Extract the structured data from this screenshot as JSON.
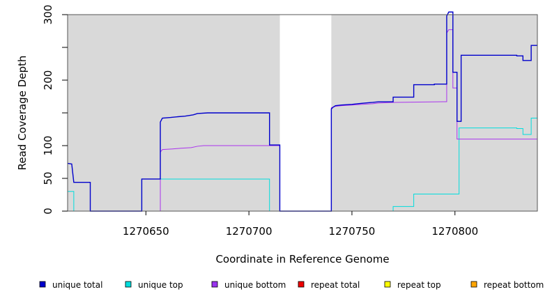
{
  "chart_data": {
    "type": "line",
    "title": "",
    "xlabel": "Coordinate in Reference Genome",
    "ylabel": "Read Coverage Depth",
    "xlim": [
      1270612,
      1270840
    ],
    "ylim": [
      0,
      300
    ],
    "x_ticks": [
      1270650,
      1270700,
      1270750,
      1270800
    ],
    "x_tick_labels": [
      "1270650",
      "1270700",
      "1270750",
      "1270800"
    ],
    "y_ticks": [
      0,
      50,
      100,
      150,
      200,
      250,
      300
    ],
    "y_tick_labels": [
      "0",
      "50",
      "100",
      "",
      "200",
      "",
      "300"
    ],
    "background_color": "#d9d9d9",
    "grid": false,
    "regions": [
      {
        "kind": "shaded",
        "x": [
          1270612,
          1270715
        ]
      },
      {
        "kind": "gap",
        "x": [
          1270715,
          1270740
        ]
      },
      {
        "kind": "shaded",
        "x": [
          1270740,
          1270840
        ]
      }
    ],
    "series": [
      {
        "name": "unique total",
        "color": "#0000cc",
        "points": [
          [
            1270612,
            73
          ],
          [
            1270614,
            72
          ],
          [
            1270615,
            44
          ],
          [
            1270623,
            44
          ],
          [
            1270623,
            0
          ],
          [
            1270648,
            0
          ],
          [
            1270648,
            49
          ],
          [
            1270657,
            49
          ],
          [
            1270657,
            136
          ],
          [
            1270658,
            142
          ],
          [
            1270662,
            143
          ],
          [
            1270665,
            144
          ],
          [
            1270669,
            145
          ],
          [
            1270673,
            147
          ],
          [
            1270675,
            149
          ],
          [
            1270680,
            150
          ],
          [
            1270710,
            150
          ],
          [
            1270710,
            101
          ],
          [
            1270715,
            101
          ],
          [
            1270715,
            0
          ],
          [
            1270740,
            0
          ],
          [
            1270740,
            156
          ],
          [
            1270741,
            159
          ],
          [
            1270742,
            161
          ],
          [
            1270745,
            162
          ],
          [
            1270750,
            163
          ],
          [
            1270753,
            164
          ],
          [
            1270756,
            165
          ],
          [
            1270760,
            166
          ],
          [
            1270763,
            167
          ],
          [
            1270770,
            167
          ],
          [
            1270770,
            174
          ],
          [
            1270780,
            174
          ],
          [
            1270780,
            193
          ],
          [
            1270790,
            193
          ],
          [
            1270790,
            194
          ],
          [
            1270796,
            194
          ],
          [
            1270796,
            298
          ],
          [
            1270797,
            304
          ],
          [
            1270799,
            304
          ],
          [
            1270799,
            212
          ],
          [
            1270801,
            212
          ],
          [
            1270801,
            137
          ],
          [
            1270803,
            137
          ],
          [
            1270803,
            238
          ],
          [
            1270830,
            238
          ],
          [
            1270830,
            237
          ],
          [
            1270833,
            237
          ],
          [
            1270833,
            230
          ],
          [
            1270837,
            230
          ],
          [
            1270837,
            253
          ],
          [
            1270840,
            253
          ]
        ]
      },
      {
        "name": "unique top",
        "color": "#00dddd",
        "points": [
          [
            1270612,
            30
          ],
          [
            1270615,
            30
          ],
          [
            1270615,
            0
          ],
          [
            1270648,
            0
          ],
          [
            1270648,
            49
          ],
          [
            1270710,
            49
          ],
          [
            1270710,
            0
          ],
          [
            1270770,
            0
          ],
          [
            1270770,
            7
          ],
          [
            1270780,
            7
          ],
          [
            1270780,
            26
          ],
          [
            1270802,
            26
          ],
          [
            1270802,
            127
          ],
          [
            1270830,
            127
          ],
          [
            1270830,
            126
          ],
          [
            1270833,
            126
          ],
          [
            1270833,
            117
          ],
          [
            1270837,
            117
          ],
          [
            1270837,
            142
          ],
          [
            1270840,
            142
          ]
        ]
      },
      {
        "name": "unique bottom",
        "color": "#aa33ee",
        "points": [
          [
            1270657,
            0
          ],
          [
            1270657,
            90
          ],
          [
            1270658,
            94
          ],
          [
            1270663,
            95
          ],
          [
            1270667,
            96
          ],
          [
            1270672,
            97
          ],
          [
            1270675,
            99
          ],
          [
            1270678,
            100
          ],
          [
            1270715,
            100
          ],
          [
            1270715,
            0
          ],
          [
            1270740,
            0
          ],
          [
            1270740,
            158
          ],
          [
            1270742,
            160
          ],
          [
            1270745,
            161
          ],
          [
            1270750,
            162
          ],
          [
            1270755,
            163
          ],
          [
            1270760,
            164
          ],
          [
            1270763,
            165
          ],
          [
            1270770,
            166
          ],
          [
            1270795,
            167
          ],
          [
            1270796,
            167
          ],
          [
            1270796,
            272
          ],
          [
            1270797,
            277
          ],
          [
            1270799,
            277
          ],
          [
            1270799,
            188
          ],
          [
            1270801,
            188
          ],
          [
            1270801,
            110
          ],
          [
            1270840,
            110
          ]
        ]
      },
      {
        "name": "repeat total",
        "color": "#ee0000",
        "points": [
          [
            1270612,
            0
          ],
          [
            1270840,
            0
          ]
        ]
      },
      {
        "name": "repeat top",
        "color": "#ffff00",
        "points": [
          [
            1270612,
            0
          ],
          [
            1270840,
            0
          ]
        ]
      },
      {
        "name": "repeat bottom",
        "color": "#ffa500",
        "points": [
          [
            1270612,
            0
          ],
          [
            1270840,
            0
          ]
        ]
      }
    ],
    "legend": {
      "placement": "bottom",
      "items": [
        {
          "label": "unique total",
          "color": "#0000cc"
        },
        {
          "label": "unique top",
          "color": "#00dddd"
        },
        {
          "label": "unique bottom",
          "color": "#9933ee"
        },
        {
          "label": "repeat total",
          "color": "#ee0000"
        },
        {
          "label": "repeat top",
          "color": "#ffff00"
        },
        {
          "label": "repeat bottom",
          "color": "#ffa500"
        }
      ]
    }
  }
}
